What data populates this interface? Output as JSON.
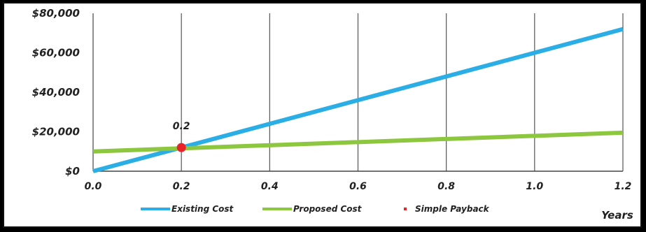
{
  "chart_data": {
    "type": "line",
    "title": "",
    "xlabel": "Years",
    "ylabel": "",
    "xlim": [
      0,
      1.2
    ],
    "ylim": [
      0,
      80000
    ],
    "x_ticks": [
      0.0,
      0.2,
      0.4,
      0.6,
      0.8,
      1.0,
      1.2
    ],
    "x_tick_labels": [
      "0.0",
      "0.2",
      "0.4",
      "0.6",
      "0.8",
      "1.0",
      "1.2"
    ],
    "y_ticks": [
      0,
      20000,
      40000,
      60000,
      80000
    ],
    "y_tick_labels": [
      "$0",
      "$20,000",
      "$40,000",
      "$60,000",
      "$80,000"
    ],
    "grid": "vertical",
    "legend_position": "bottom",
    "series": [
      {
        "name": "Existing Cost",
        "type": "line",
        "color": "#2AAEE5",
        "x": [
          0,
          1.2
        ],
        "y": [
          0,
          72000
        ]
      },
      {
        "name": "Proposed Cost",
        "type": "line",
        "color": "#8DC63F",
        "x": [
          0,
          1.2
        ],
        "y": [
          10000,
          19500
        ]
      },
      {
        "name": "Simple Payback",
        "type": "scatter",
        "color": "#E8232A",
        "x": [
          0.2
        ],
        "y": [
          12000
        ]
      }
    ],
    "annotations": [
      {
        "text": "0.2",
        "x": 0.2,
        "y": 12000
      }
    ]
  }
}
